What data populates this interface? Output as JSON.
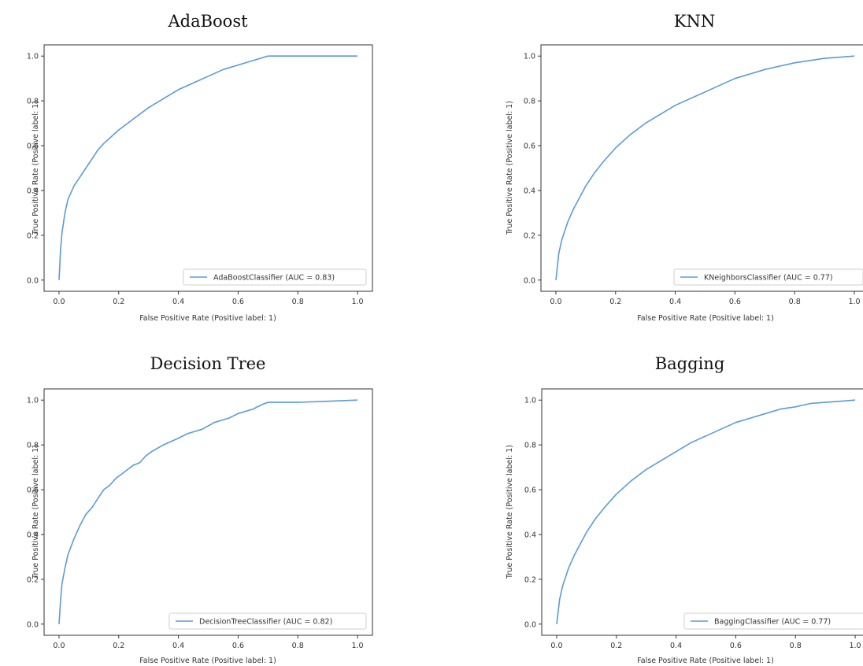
{
  "chart_data": [
    {
      "type": "line",
      "title": "AdaBoost",
      "xlabel": "False Positive Rate (Positive label: 1)",
      "ylabel": "True Positive Rate (Positive label: 1)",
      "xlim": [
        0,
        1
      ],
      "ylim": [
        0,
        1
      ],
      "xticks": [
        "0.0",
        "0.2",
        "0.4",
        "0.6",
        "0.8",
        "1.0"
      ],
      "yticks": [
        "0.0",
        "0.2",
        "0.4",
        "0.6",
        "0.8",
        "1.0"
      ],
      "legend_position": "lower-right",
      "series": [
        {
          "name": "AdaBoostClassifier (AUC = 0.83)",
          "x": [
            0,
            0.005,
            0.01,
            0.02,
            0.03,
            0.05,
            0.08,
            0.1,
            0.13,
            0.15,
            0.2,
            0.25,
            0.3,
            0.35,
            0.4,
            0.45,
            0.5,
            0.55,
            0.6,
            0.65,
            0.7,
            0.75,
            0.8,
            0.9,
            1.0
          ],
          "y": [
            0,
            0.13,
            0.21,
            0.3,
            0.36,
            0.42,
            0.48,
            0.52,
            0.58,
            0.61,
            0.67,
            0.72,
            0.77,
            0.81,
            0.85,
            0.88,
            0.91,
            0.94,
            0.96,
            0.98,
            1.0,
            1.0,
            1.0,
            1.0,
            1.0
          ]
        }
      ]
    },
    {
      "type": "line",
      "title": "KNN",
      "xlabel": "False Positive Rate (Positive label: 1)",
      "ylabel": "True Positive Rate (Positive label: 1)",
      "xlim": [
        0,
        1
      ],
      "ylim": [
        0,
        1
      ],
      "xticks": [
        "0.0",
        "0.2",
        "0.4",
        "0.6",
        "0.8",
        "1.0"
      ],
      "yticks": [
        "0.0",
        "0.2",
        "0.4",
        "0.6",
        "0.8",
        "1.0"
      ],
      "legend_position": "lower-right",
      "series": [
        {
          "name": "KNeighborsClassifier (AUC = 0.77)",
          "x": [
            0,
            0.01,
            0.02,
            0.04,
            0.06,
            0.08,
            0.1,
            0.13,
            0.16,
            0.2,
            0.25,
            0.3,
            0.35,
            0.4,
            0.45,
            0.5,
            0.55,
            0.6,
            0.65,
            0.7,
            0.75,
            0.8,
            0.85,
            0.9,
            0.95,
            1.0
          ],
          "y": [
            0,
            0.12,
            0.18,
            0.26,
            0.32,
            0.37,
            0.42,
            0.48,
            0.53,
            0.59,
            0.65,
            0.7,
            0.74,
            0.78,
            0.81,
            0.84,
            0.87,
            0.9,
            0.92,
            0.94,
            0.955,
            0.97,
            0.98,
            0.99,
            0.995,
            1.0
          ]
        }
      ]
    },
    {
      "type": "line",
      "title": "Decision Tree",
      "xlabel": "False Positive Rate (Positive label: 1)",
      "ylabel": "True Positive Rate (Positive label: 1)",
      "xlim": [
        0,
        1
      ],
      "ylim": [
        0,
        1
      ],
      "xticks": [
        "0.0",
        "0.2",
        "0.4",
        "0.6",
        "0.8",
        "1.0"
      ],
      "yticks": [
        "0.0",
        "0.2",
        "0.4",
        "0.6",
        "0.8",
        "1.0"
      ],
      "legend_position": "lower-right",
      "series": [
        {
          "name": "DecisionTreeClassifier (AUC = 0.82)",
          "x": [
            0,
            0.005,
            0.01,
            0.02,
            0.03,
            0.05,
            0.07,
            0.09,
            0.11,
            0.13,
            0.15,
            0.17,
            0.19,
            0.21,
            0.23,
            0.25,
            0.27,
            0.29,
            0.31,
            0.35,
            0.4,
            0.43,
            0.48,
            0.52,
            0.57,
            0.6,
            0.65,
            0.68,
            0.7,
            0.8,
            0.9,
            1.0
          ],
          "y": [
            0,
            0.1,
            0.18,
            0.25,
            0.31,
            0.38,
            0.44,
            0.49,
            0.52,
            0.56,
            0.6,
            0.62,
            0.65,
            0.67,
            0.69,
            0.71,
            0.72,
            0.75,
            0.77,
            0.8,
            0.83,
            0.85,
            0.87,
            0.9,
            0.92,
            0.94,
            0.96,
            0.98,
            0.99,
            0.99,
            0.995,
            1.0
          ]
        }
      ]
    },
    {
      "type": "line",
      "title": "Bagging",
      "xlabel": "False Positive Rate (Positive label: 1)",
      "ylabel": "True Positive Rate (Positive label: 1)",
      "xlim": [
        0,
        1
      ],
      "ylim": [
        0,
        1
      ],
      "xticks": [
        "0.0",
        "0.2",
        "0.4",
        "0.6",
        "0.8",
        "1.0"
      ],
      "yticks": [
        "0.0",
        "0.2",
        "0.4",
        "0.6",
        "0.8",
        "1.0"
      ],
      "legend_position": "lower-right",
      "series": [
        {
          "name": "BaggingClassifier (AUC = 0.77)",
          "x": [
            0,
            0.01,
            0.02,
            0.04,
            0.06,
            0.08,
            0.1,
            0.13,
            0.16,
            0.2,
            0.25,
            0.3,
            0.35,
            0.4,
            0.45,
            0.5,
            0.55,
            0.6,
            0.65,
            0.7,
            0.75,
            0.8,
            0.85,
            0.9,
            0.95,
            1.0
          ],
          "y": [
            0,
            0.11,
            0.17,
            0.25,
            0.31,
            0.36,
            0.41,
            0.47,
            0.52,
            0.58,
            0.64,
            0.69,
            0.73,
            0.77,
            0.81,
            0.84,
            0.87,
            0.9,
            0.92,
            0.94,
            0.96,
            0.97,
            0.985,
            0.99,
            0.995,
            1.0
          ]
        }
      ]
    }
  ],
  "colors": {
    "curve": "#5b9bd5",
    "axes": "#333333"
  }
}
